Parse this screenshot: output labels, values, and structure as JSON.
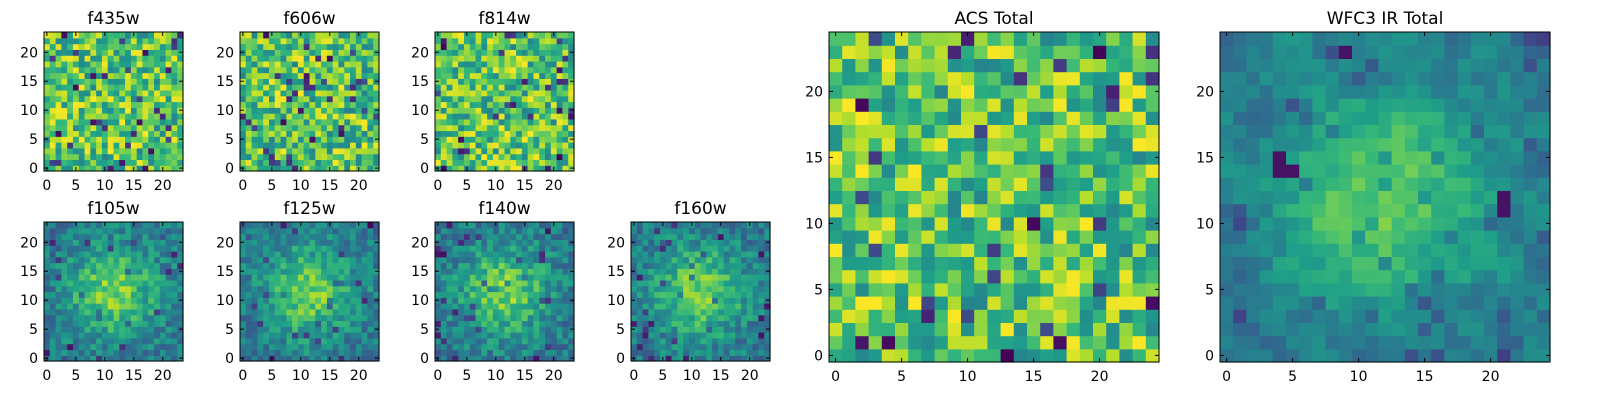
{
  "chart_data": [
    {
      "name": "f435w",
      "type": "heatmap",
      "title": "f435w",
      "grid_size": 24,
      "xlim": [
        -0.5,
        23.5
      ],
      "ylim": [
        -0.5,
        23.5
      ],
      "xticks": [
        0,
        5,
        10,
        15,
        20
      ],
      "xtick_labels": [
        "0",
        "5",
        "10",
        "15",
        "20"
      ],
      "yticks": [
        0,
        5,
        10,
        15,
        20
      ],
      "ytick_labels": [
        "0",
        "5",
        "10",
        "15",
        "20"
      ],
      "colormap": "viridis",
      "seed": 11
    },
    {
      "name": "f606w",
      "type": "heatmap",
      "title": "f606w",
      "grid_size": 24,
      "xlim": [
        -0.5,
        23.5
      ],
      "ylim": [
        -0.5,
        23.5
      ],
      "xticks": [
        0,
        5,
        10,
        15,
        20
      ],
      "xtick_labels": [
        "0",
        "5",
        "10",
        "15",
        "20"
      ],
      "yticks": [
        0,
        5,
        10,
        15,
        20
      ],
      "ytick_labels": [
        "0",
        "5",
        "10",
        "15",
        "20"
      ],
      "colormap": "viridis",
      "seed": 23
    },
    {
      "name": "f814w",
      "type": "heatmap",
      "title": "f814w",
      "grid_size": 24,
      "xlim": [
        -0.5,
        23.5
      ],
      "ylim": [
        -0.5,
        23.5
      ],
      "xticks": [
        0,
        5,
        10,
        15,
        20
      ],
      "xtick_labels": [
        "0",
        "5",
        "10",
        "15",
        "20"
      ],
      "yticks": [
        0,
        5,
        10,
        15,
        20
      ],
      "ytick_labels": [
        "0",
        "5",
        "10",
        "15",
        "20"
      ],
      "colormap": "viridis",
      "seed": 37
    },
    {
      "name": "f105w",
      "type": "heatmap",
      "title": "f105w",
      "grid_size": 24,
      "xlim": [
        -0.5,
        23.5
      ],
      "ylim": [
        -0.5,
        23.5
      ],
      "xticks": [
        0,
        5,
        10,
        15,
        20
      ],
      "xtick_labels": [
        "0",
        "5",
        "10",
        "15",
        "20"
      ],
      "yticks": [
        0,
        5,
        10,
        15,
        20
      ],
      "ytick_labels": [
        "0",
        "5",
        "10",
        "15",
        "20"
      ],
      "colormap": "viridis",
      "seed": 41
    },
    {
      "name": "f125w",
      "type": "heatmap",
      "title": "f125w",
      "grid_size": 24,
      "xlim": [
        -0.5,
        23.5
      ],
      "ylim": [
        -0.5,
        23.5
      ],
      "xticks": [
        0,
        5,
        10,
        15,
        20
      ],
      "xtick_labels": [
        "0",
        "5",
        "10",
        "15",
        "20"
      ],
      "yticks": [
        0,
        5,
        10,
        15,
        20
      ],
      "ytick_labels": [
        "0",
        "5",
        "10",
        "15",
        "20"
      ],
      "colormap": "viridis",
      "seed": 53
    },
    {
      "name": "f140w",
      "type": "heatmap",
      "title": "f140w",
      "grid_size": 24,
      "xlim": [
        -0.5,
        23.5
      ],
      "ylim": [
        -0.5,
        23.5
      ],
      "xticks": [
        0,
        5,
        10,
        15,
        20
      ],
      "xtick_labels": [
        "0",
        "5",
        "10",
        "15",
        "20"
      ],
      "yticks": [
        0,
        5,
        10,
        15,
        20
      ],
      "ytick_labels": [
        "0",
        "5",
        "10",
        "15",
        "20"
      ],
      "colormap": "viridis",
      "seed": 67
    },
    {
      "name": "f160w",
      "type": "heatmap",
      "title": "f160w",
      "grid_size": 24,
      "xlim": [
        -0.5,
        23.5
      ],
      "ylim": [
        -0.5,
        23.5
      ],
      "xticks": [
        0,
        5,
        10,
        15,
        20
      ],
      "xtick_labels": [
        "0",
        "5",
        "10",
        "15",
        "20"
      ],
      "yticks": [
        0,
        5,
        10,
        15,
        20
      ],
      "ytick_labels": [
        "0",
        "5",
        "10",
        "15",
        "20"
      ],
      "colormap": "viridis",
      "seed": 79
    },
    {
      "name": "acs-total",
      "type": "heatmap",
      "title": "ACS Total",
      "grid_size": 25,
      "xlim": [
        -0.5,
        24.5
      ],
      "ylim": [
        -0.5,
        24.5
      ],
      "xticks": [
        0,
        5,
        10,
        15,
        20
      ],
      "xtick_labels": [
        "0",
        "5",
        "10",
        "15",
        "20"
      ],
      "yticks": [
        0,
        5,
        10,
        15,
        20
      ],
      "ytick_labels": [
        "0",
        "5",
        "10",
        "15",
        "20"
      ],
      "colormap": "viridis",
      "seed": 97
    },
    {
      "name": "wfc3-ir-total",
      "type": "heatmap",
      "title": "WFC3 IR Total",
      "grid_size": 25,
      "xlim": [
        -0.5,
        24.5
      ],
      "ylim": [
        -0.5,
        24.5
      ],
      "xticks": [
        0,
        5,
        10,
        15,
        20
      ],
      "xtick_labels": [
        "0",
        "5",
        "10",
        "15",
        "20"
      ],
      "yticks": [
        0,
        5,
        10,
        15,
        20
      ],
      "ytick_labels": [
        "0",
        "5",
        "10",
        "15",
        "20"
      ],
      "colormap": "viridis",
      "seed": 131
    }
  ]
}
